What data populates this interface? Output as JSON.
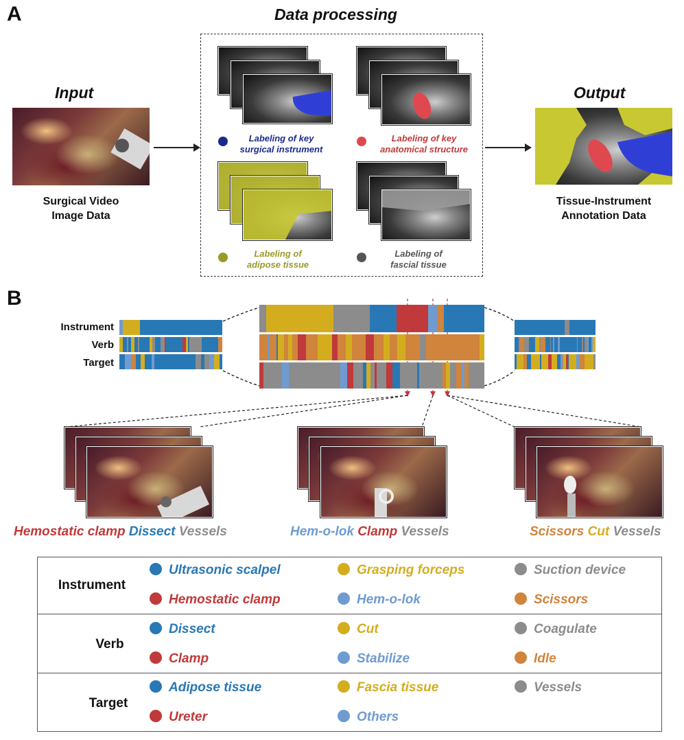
{
  "panelA": {
    "letter": "A",
    "input_title": "Input",
    "input_caption_line1": "Surgical Video",
    "input_caption_line2": "Image Data",
    "processing_title": "Data processing",
    "output_title": "Output",
    "output_caption_line1": "Tissue-Instrument",
    "output_caption_line2": "Annotation Data",
    "labels": [
      {
        "line1": "Labeling of key",
        "line2": "surgical instrument",
        "color": "#1b2a8a"
      },
      {
        "line1": "Labeling of key",
        "line2": "anatomical structure",
        "color": "#c0393b"
      },
      {
        "line1": "Labeling of",
        "line2": "adipose tissue",
        "color": "#9a9a2a"
      },
      {
        "line1": "Labeling of",
        "line2": "fascial tissue",
        "color": "#555555"
      }
    ]
  },
  "panelB": {
    "letter": "B",
    "row_labels": [
      "Instrument",
      "Verb",
      "Target"
    ],
    "triplets": [
      {
        "instrument": "Hemostatic clamp",
        "verb": "Dissect",
        "target": "Vessels",
        "colors": [
          "#c0393b",
          "#2878b5",
          "#8c8c8c"
        ]
      },
      {
        "instrument": "Hem-o-lok",
        "verb": "Clamp",
        "target": "Vessels",
        "colors": [
          "#6f9bd1",
          "#c0393b",
          "#8c8c8c"
        ]
      },
      {
        "instrument": "Scissors",
        "verb": "Cut",
        "target": "Vessels",
        "colors": [
          "#d0843c",
          "#d4ad1f",
          "#8c8c8c"
        ]
      }
    ]
  },
  "legend": {
    "categories": [
      {
        "name": "Instrument",
        "items": [
          {
            "label": "Ultrasonic scalpel",
            "color": "#2878b5"
          },
          {
            "label": "Grasping forceps",
            "color": "#d4ad1f"
          },
          {
            "label": "Suction device",
            "color": "#8c8c8c"
          },
          {
            "label": "Hemostatic clamp",
            "color": "#c0393b"
          },
          {
            "label": "Hem-o-lok",
            "color": "#6f9bd1"
          },
          {
            "label": "Scissors",
            "color": "#d0843c"
          }
        ]
      },
      {
        "name": "Verb",
        "items": [
          {
            "label": "Dissect",
            "color": "#2878b5"
          },
          {
            "label": "Cut",
            "color": "#d4ad1f"
          },
          {
            "label": "Coagulate",
            "color": "#8c8c8c"
          },
          {
            "label": "Clamp",
            "color": "#c0393b"
          },
          {
            "label": "Stabilize",
            "color": "#6f9bd1"
          },
          {
            "label": "Idle",
            "color": "#d0843c"
          }
        ]
      },
      {
        "name": "Target",
        "items": [
          {
            "label": "Adipose tissue",
            "color": "#2878b5"
          },
          {
            "label": "Fascia tissue",
            "color": "#d4ad1f"
          },
          {
            "label": "Vessels",
            "color": "#8c8c8c"
          },
          {
            "label": "Ureter",
            "color": "#c0393b"
          },
          {
            "label": "Others",
            "color": "#6f9bd1"
          }
        ]
      }
    ]
  },
  "colors": {
    "blue": "#2878b5",
    "gold": "#d4ad1f",
    "gray": "#8c8c8c",
    "red": "#c0393b",
    "lightblue": "#6f9bd1",
    "orange": "#d0843c",
    "seg_blue": "#2f3fd6",
    "seg_red": "#e04850",
    "seg_yellow": "#c8c832"
  }
}
